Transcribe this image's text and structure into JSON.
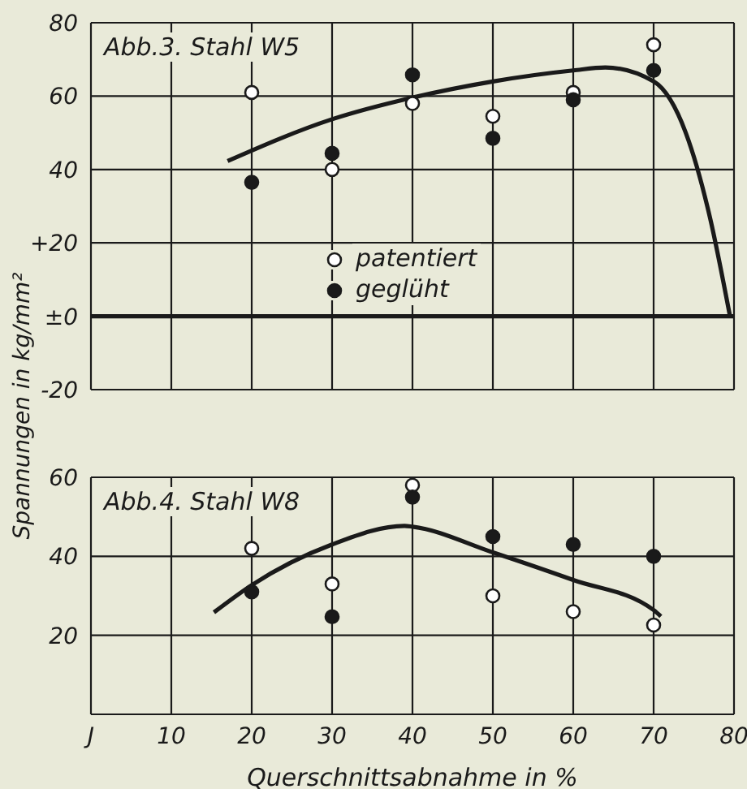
{
  "chart_data": [
    {
      "type": "scatter",
      "title": "Abb.3. Stahl W5",
      "ylabel": "Spannungen in kg/mm²",
      "x": [
        20,
        30,
        40,
        50,
        60,
        70
      ],
      "marker": "circle",
      "grid": true,
      "legend": "center",
      "tick_labels": "y",
      "xlim": [
        0,
        80
      ],
      "xticks": [
        0,
        10,
        20,
        30,
        40,
        50,
        60,
        70,
        80
      ],
      "ylim": [
        -20,
        80
      ],
      "yticks": [
        80,
        60,
        40,
        {
          "value": 20,
          "label": "+20"
        },
        {
          "value": 0,
          "label": "±0"
        },
        -20
      ],
      "ref_lines": [
        {
          "axis": "y",
          "value": 0,
          "color": "#1a1a1a"
        }
      ],
      "series": [
        {
          "name": "patentiert",
          "color": "#ffffff",
          "values": [
            61,
            40,
            58,
            54.5,
            61,
            74
          ]
        },
        {
          "name": "geglüht",
          "color": "#1a1a1a",
          "values": [
            36.5,
            44.4,
            65.8,
            48.5,
            59,
            67
          ]
        },
        {
          "type": "line",
          "marker": "none",
          "color": "#1a1a1a",
          "x": [
            17,
            30,
            40,
            50,
            60,
            64,
            70,
            74,
            77,
            79.5
          ],
          "values": [
            42.3,
            53.7,
            59.6,
            64,
            67,
            67.8,
            64,
            50,
            27,
            0
          ]
        }
      ]
    },
    {
      "type": "scatter",
      "title": "Abb.4. Stahl W8",
      "xlabel": "Querschnittsabnahme in %",
      "x": [
        20,
        30,
        40,
        50,
        60,
        70
      ],
      "marker": "circle",
      "grid": true,
      "xlim": [
        0,
        80
      ],
      "xticks": [
        {
          "value": 0,
          "label": "J"
        },
        10,
        20,
        30,
        40,
        50,
        60,
        70,
        80
      ],
      "ylim": [
        0,
        60
      ],
      "yticks": [
        20,
        40,
        60
      ],
      "series": [
        {
          "color": "#ffffff",
          "values": [
            42,
            33,
            58,
            30,
            26,
            22.6
          ]
        },
        {
          "color": "#1a1a1a",
          "values": [
            31,
            24.7,
            55,
            45,
            43,
            40
          ]
        },
        {
          "type": "line",
          "marker": "none",
          "color": "#1a1a1a",
          "x": [
            15.3,
            20,
            30,
            39,
            40,
            50,
            60,
            70,
            70.9
          ],
          "values": [
            25.8,
            32.7,
            43,
            47.7,
            47.5,
            41,
            34,
            26.4,
            24.8
          ]
        }
      ]
    }
  ]
}
